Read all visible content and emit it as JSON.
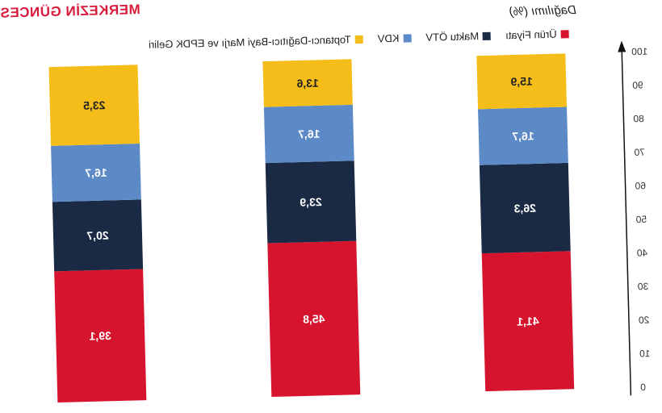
{
  "header": {
    "brand": "MERKEZİN GÜNCES",
    "subtitle": "Dağılımı (%)"
  },
  "chart_data": {
    "type": "bar",
    "stacked": true,
    "categories": [
      "",
      "",
      ""
    ],
    "series": [
      {
        "name": "Ürün Fiyatı",
        "color": "#d7142e",
        "values": [
          41.1,
          45.8,
          39.1
        ],
        "labels": [
          "41,1",
          "45,8",
          "39,1"
        ]
      },
      {
        "name": "Maktu ÖTV",
        "color": "#1b2a44",
        "values": [
          26.3,
          23.9,
          20.7
        ],
        "labels": [
          "26,3",
          "23,9",
          "20,7"
        ]
      },
      {
        "name": "KDV",
        "color": "#5b8ac6",
        "values": [
          16.7,
          16.7,
          16.7
        ],
        "labels": [
          "16,7",
          "16,7",
          "16,7"
        ]
      },
      {
        "name": "Toptancı-Dağıtıcı-Bayi Marjı ve EPDK Geliri",
        "color": "#f4bd1a",
        "values": [
          15.9,
          13.6,
          23.5
        ],
        "labels": [
          "15,9",
          "13,6",
          "23,5"
        ]
      }
    ],
    "ylim": [
      0,
      100
    ],
    "yticks": [
      "0",
      "10",
      "20",
      "30",
      "40",
      "50",
      "60",
      "70",
      "80",
      "90",
      "100"
    ],
    "legend": "top",
    "grid": false,
    "mirrored": true
  }
}
